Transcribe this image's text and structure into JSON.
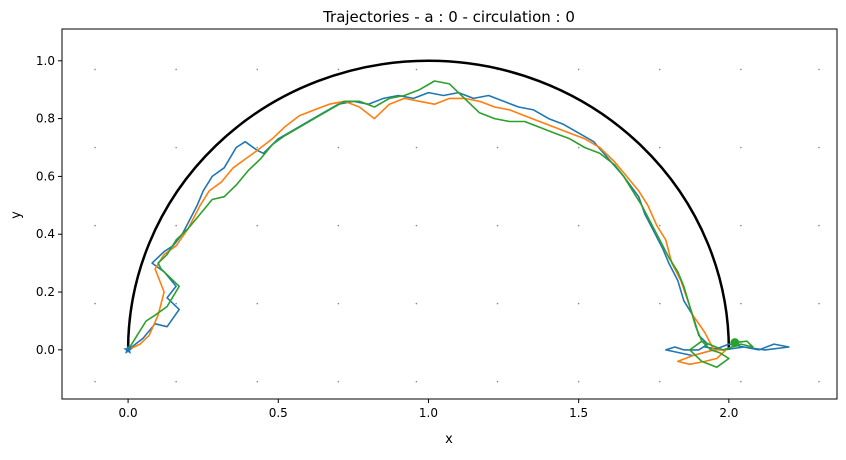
{
  "chart_data": {
    "type": "line",
    "title": "Trajectories - a : 0 - circulation : 0",
    "xlabel": "x",
    "ylabel": "y",
    "xlim": [
      -0.22,
      2.36
    ],
    "ylim": [
      -0.17,
      1.11
    ],
    "xticks": [
      {
        "value": 0.0,
        "label": "0.0"
      },
      {
        "value": 0.5,
        "label": "0.5"
      },
      {
        "value": 1.0,
        "label": "1.0"
      },
      {
        "value": 1.5,
        "label": "1.5"
      },
      {
        "value": 2.0,
        "label": "2.0"
      }
    ],
    "yticks": [
      {
        "value": 0.0,
        "label": "0.0"
      },
      {
        "value": 0.2,
        "label": "0.2"
      },
      {
        "value": 0.4,
        "label": "0.4"
      },
      {
        "value": 0.6,
        "label": "0.6"
      },
      {
        "value": 0.8,
        "label": "0.8"
      },
      {
        "value": 1.0,
        "label": "1.0"
      }
    ],
    "grid": "dotted points",
    "grid_x": [
      -0.11,
      0.16,
      0.43,
      0.7,
      0.96,
      1.23,
      1.5,
      1.77,
      2.04,
      2.3
    ],
    "grid_y": [
      -0.11,
      0.16,
      0.43,
      0.7,
      0.97
    ],
    "reference_curve": {
      "shape": "semicircle",
      "center": [
        1.0,
        0.0
      ],
      "radius": 1.0,
      "color": "#000000"
    },
    "start_point": {
      "x": 0.0,
      "y": 0.0,
      "marker": "star",
      "color": "#1f77b4"
    },
    "end_point": {
      "x": 2.02,
      "y": 0.025,
      "marker": "circle",
      "color": "#2ca02c"
    },
    "series": [
      {
        "color": "#1f77b4",
        "x": [
          0.0,
          0.05,
          0.09,
          0.13,
          0.17,
          0.13,
          0.16,
          0.12,
          0.08,
          0.12,
          0.15,
          0.18,
          0.2,
          0.23,
          0.25,
          0.28,
          0.32,
          0.36,
          0.39,
          0.43,
          0.45,
          0.5,
          0.55,
          0.6,
          0.65,
          0.7,
          0.75,
          0.8,
          0.85,
          0.9,
          0.95,
          1.0,
          1.05,
          1.1,
          1.15,
          1.2,
          1.25,
          1.3,
          1.35,
          1.4,
          1.45,
          1.5,
          1.55,
          1.6,
          1.65,
          1.7,
          1.72,
          1.75,
          1.78,
          1.8,
          1.83,
          1.85,
          1.88,
          1.9,
          1.93,
          1.9,
          1.85,
          1.82,
          1.79,
          1.88,
          1.95,
          2.0,
          2.05,
          2.1,
          2.15,
          2.2,
          2.12,
          2.05,
          1.98,
          1.92
        ],
        "y": [
          0.0,
          0.04,
          0.09,
          0.08,
          0.14,
          0.18,
          0.22,
          0.27,
          0.3,
          0.34,
          0.36,
          0.4,
          0.44,
          0.5,
          0.55,
          0.6,
          0.63,
          0.7,
          0.72,
          0.69,
          0.68,
          0.73,
          0.76,
          0.79,
          0.82,
          0.85,
          0.86,
          0.85,
          0.87,
          0.88,
          0.87,
          0.89,
          0.88,
          0.89,
          0.87,
          0.88,
          0.86,
          0.84,
          0.83,
          0.8,
          0.78,
          0.75,
          0.72,
          0.66,
          0.6,
          0.53,
          0.47,
          0.41,
          0.35,
          0.3,
          0.24,
          0.17,
          0.12,
          0.05,
          0.02,
          0.0,
          0.0,
          0.01,
          0.0,
          -0.02,
          0.0,
          0.02,
          0.01,
          0.0,
          0.02,
          0.01,
          0.0,
          0.01,
          0.0,
          0.01
        ]
      },
      {
        "color": "#ff7f0e",
        "x": [
          0.0,
          0.04,
          0.07,
          0.1,
          0.12,
          0.09,
          0.12,
          0.16,
          0.2,
          0.24,
          0.27,
          0.31,
          0.35,
          0.39,
          0.43,
          0.48,
          0.52,
          0.57,
          0.62,
          0.67,
          0.72,
          0.77,
          0.82,
          0.87,
          0.92,
          0.97,
          1.02,
          1.07,
          1.12,
          1.17,
          1.22,
          1.27,
          1.32,
          1.37,
          1.42,
          1.47,
          1.52,
          1.57,
          1.62,
          1.66,
          1.7,
          1.73,
          1.76,
          1.79,
          1.81,
          1.84,
          1.86,
          1.88,
          1.92,
          1.95,
          1.88,
          1.83,
          1.87,
          1.92,
          1.96,
          1.99,
          1.94
        ],
        "y": [
          0.0,
          0.02,
          0.05,
          0.12,
          0.2,
          0.28,
          0.33,
          0.36,
          0.42,
          0.5,
          0.55,
          0.58,
          0.63,
          0.66,
          0.69,
          0.73,
          0.77,
          0.81,
          0.83,
          0.85,
          0.86,
          0.84,
          0.8,
          0.85,
          0.87,
          0.86,
          0.85,
          0.87,
          0.87,
          0.86,
          0.84,
          0.83,
          0.81,
          0.79,
          0.77,
          0.75,
          0.73,
          0.7,
          0.65,
          0.6,
          0.55,
          0.5,
          0.43,
          0.38,
          0.3,
          0.24,
          0.18,
          0.12,
          0.06,
          0.0,
          -0.02,
          -0.04,
          -0.05,
          -0.04,
          -0.03,
          0.0,
          0.0
        ]
      },
      {
        "color": "#2ca02c",
        "x": [
          0.0,
          0.03,
          0.06,
          0.09,
          0.13,
          0.17,
          0.14,
          0.11,
          0.1,
          0.13,
          0.16,
          0.2,
          0.24,
          0.28,
          0.32,
          0.36,
          0.4,
          0.44,
          0.48,
          0.52,
          0.57,
          0.62,
          0.67,
          0.72,
          0.77,
          0.82,
          0.87,
          0.92,
          0.97,
          1.02,
          1.07,
          1.12,
          1.17,
          1.22,
          1.27,
          1.32,
          1.37,
          1.42,
          1.47,
          1.52,
          1.57,
          1.62,
          1.65,
          1.68,
          1.71,
          1.74,
          1.77,
          1.8,
          1.83,
          1.85,
          1.87,
          1.89,
          1.91,
          1.94,
          1.97,
          2.0,
          1.96,
          1.91,
          1.87,
          1.91,
          1.98,
          2.04,
          2.08,
          2.06,
          2.02
        ],
        "y": [
          0.0,
          0.05,
          0.1,
          0.12,
          0.15,
          0.22,
          0.25,
          0.28,
          0.3,
          0.33,
          0.38,
          0.42,
          0.47,
          0.52,
          0.53,
          0.57,
          0.62,
          0.66,
          0.71,
          0.74,
          0.77,
          0.8,
          0.83,
          0.86,
          0.86,
          0.84,
          0.87,
          0.88,
          0.9,
          0.93,
          0.92,
          0.87,
          0.82,
          0.8,
          0.79,
          0.79,
          0.77,
          0.75,
          0.73,
          0.7,
          0.68,
          0.64,
          0.6,
          0.55,
          0.5,
          0.44,
          0.38,
          0.32,
          0.27,
          0.22,
          0.15,
          0.08,
          0.03,
          0.0,
          -0.01,
          -0.03,
          -0.06,
          -0.04,
          0.0,
          0.03,
          0.0,
          0.02,
          0.01,
          0.03,
          0.025
        ]
      }
    ]
  }
}
